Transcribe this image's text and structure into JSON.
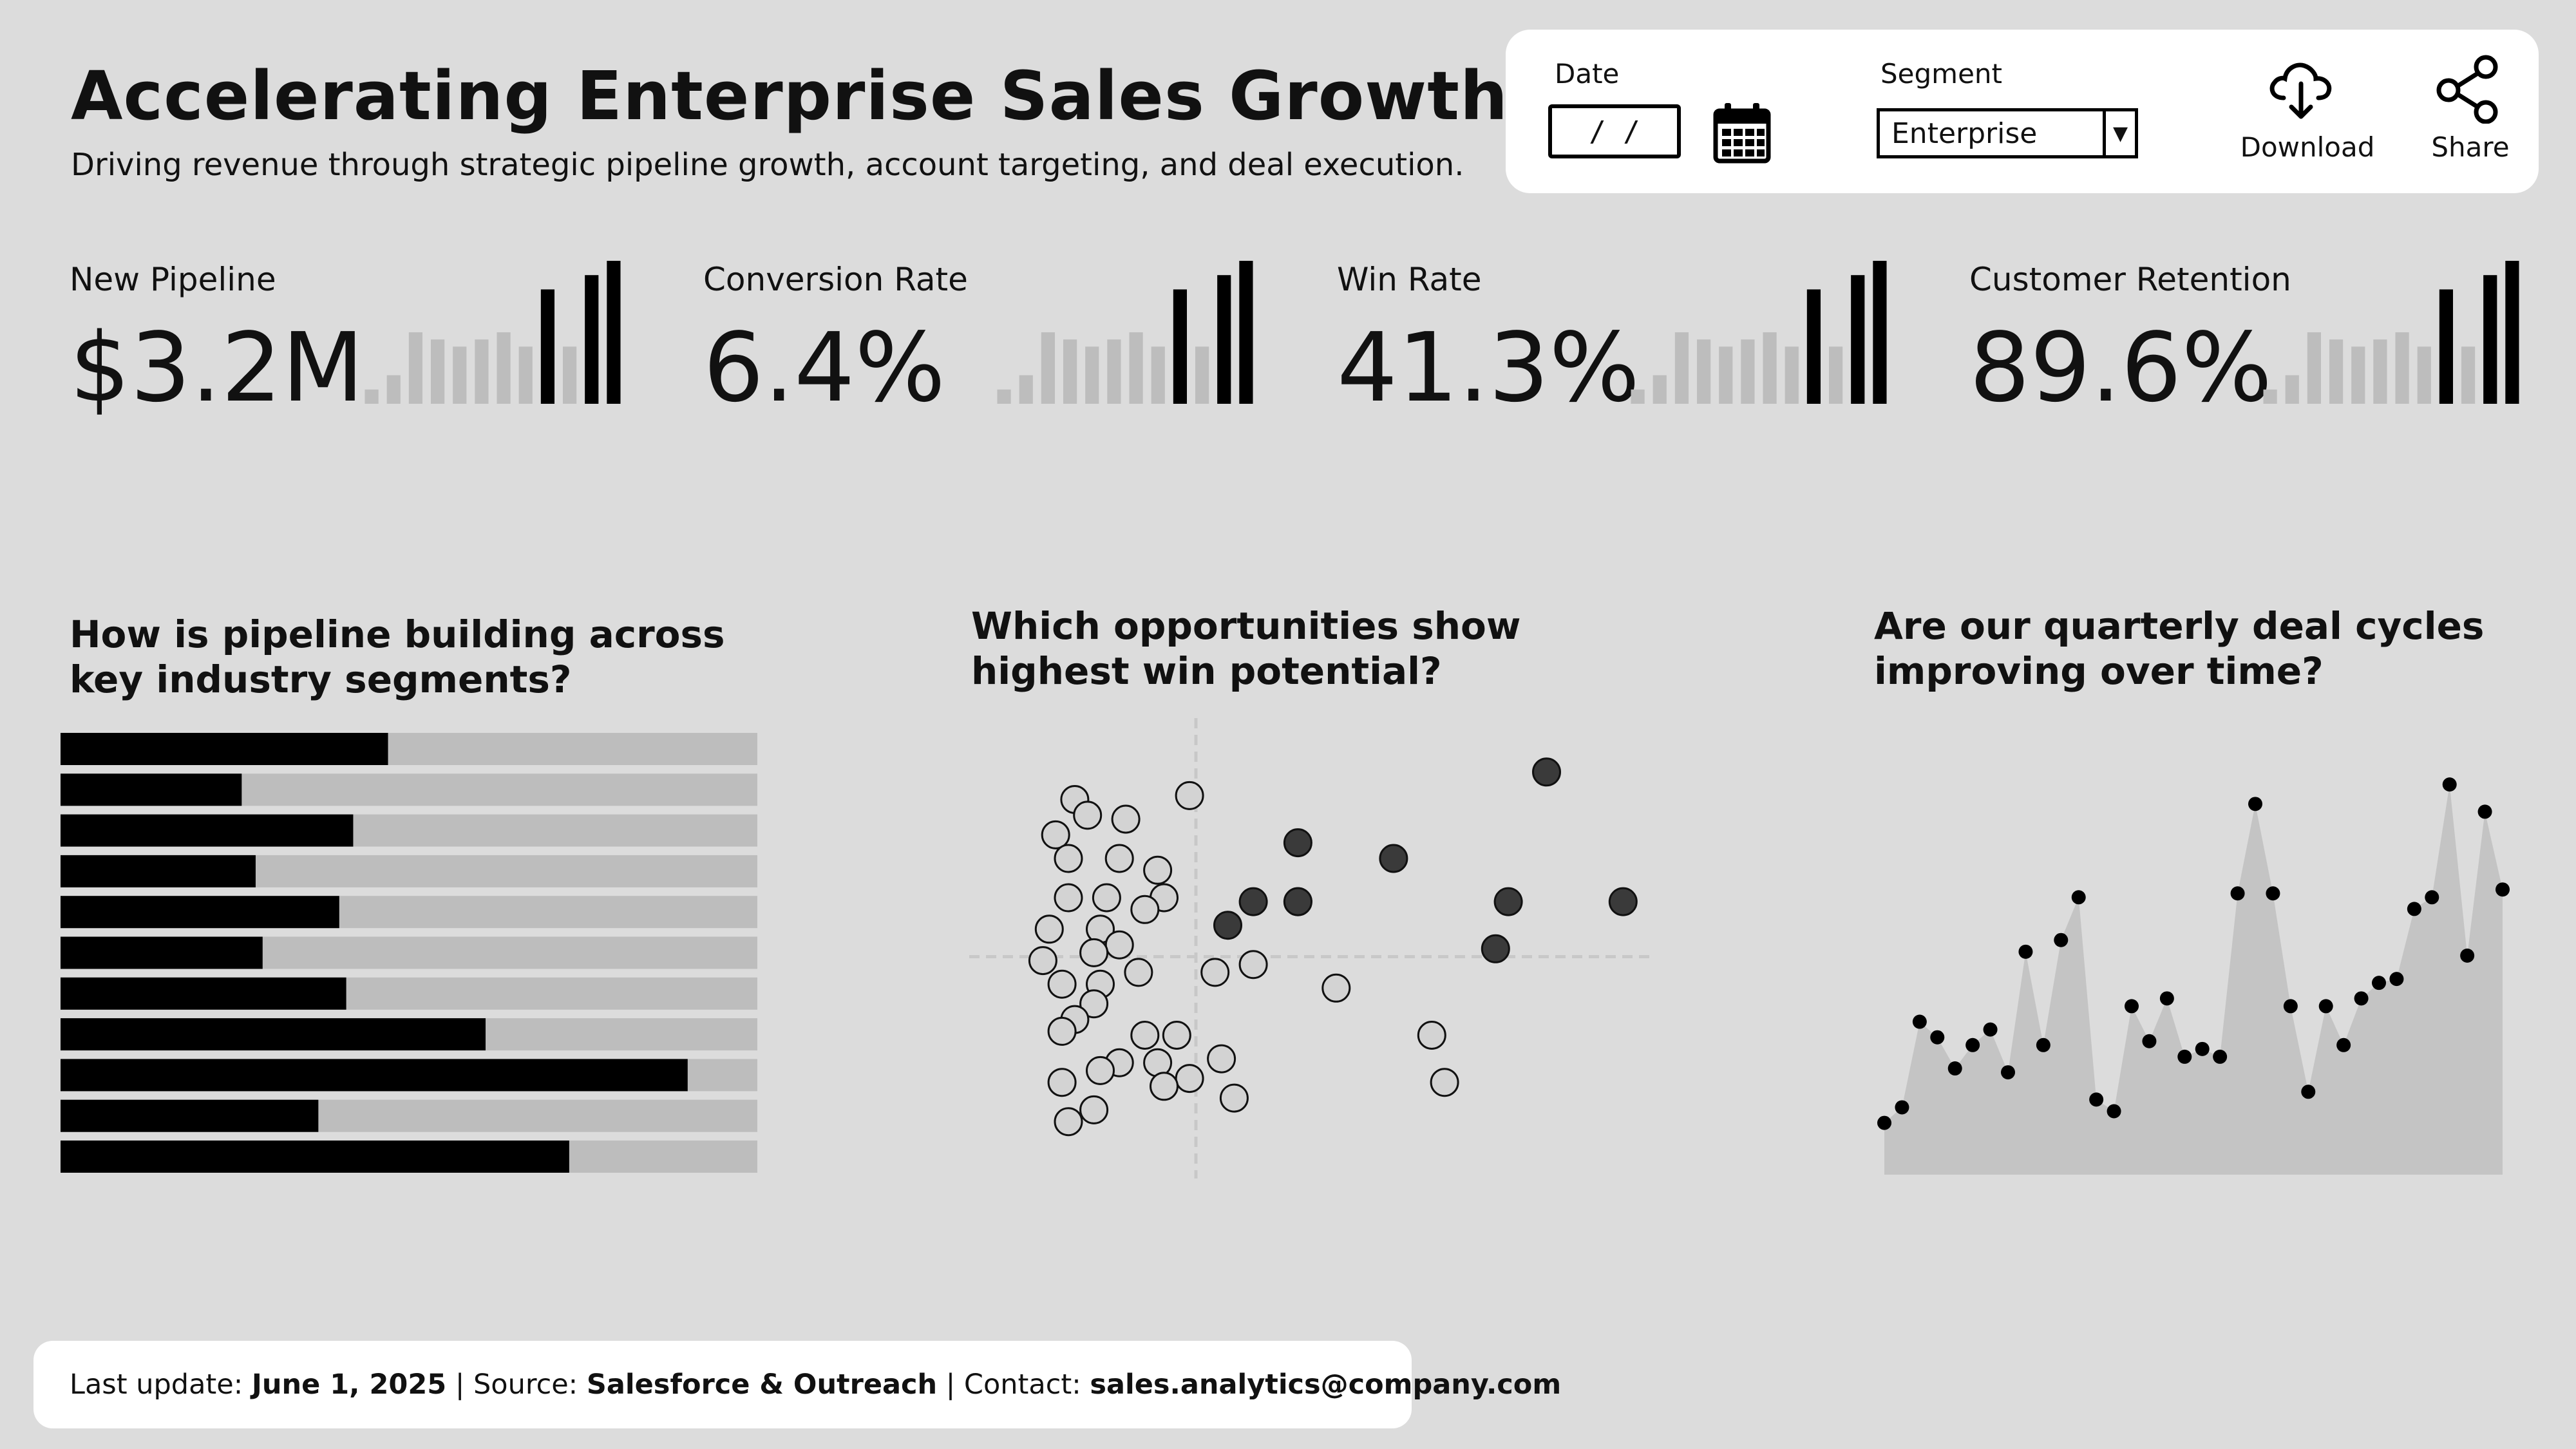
{
  "header": {
    "title": "Accelerating Enterprise Sales Growth",
    "subtitle": "Driving revenue through strategic pipeline growth, account targeting, and deal execution."
  },
  "controls": {
    "date_label": "Date",
    "date_value": "/ /",
    "date_icon": "calendar-icon",
    "segment_label": "Segment",
    "segment_value": "Enterprise",
    "download_label": "Download",
    "download_icon": "cloud-download-icon",
    "share_label": "Share",
    "share_icon": "share-icon"
  },
  "kpis": [
    {
      "label": "New Pipeline",
      "value": "$3.2M",
      "bars": [
        2,
        4,
        10,
        9,
        8,
        9,
        10,
        8,
        16,
        8,
        18,
        20
      ]
    },
    {
      "label": "Conversion Rate",
      "value": "6.4%",
      "bars": [
        2,
        4,
        10,
        9,
        8,
        9,
        10,
        8,
        16,
        8,
        18,
        20
      ]
    },
    {
      "label": "Win Rate",
      "value": "41.3%",
      "bars": [
        2,
        4,
        10,
        9,
        8,
        9,
        10,
        8,
        16,
        8,
        18,
        20
      ]
    },
    {
      "label": "Customer Retention",
      "value": "89.6%",
      "bars": [
        2,
        4,
        10,
        9,
        8,
        9,
        10,
        8,
        16,
        8,
        18,
        20
      ]
    }
  ],
  "kpi_colors": {
    "muted": "#bdbdbd",
    "highlight": "#000000"
  },
  "questions": {
    "q1": "How is pipeline building across key industry segments?",
    "q2": "Which opportunities show highest win potential?",
    "q3": "Are our quarterly deal cycles improving over time?"
  },
  "chart_data": [
    {
      "type": "bar",
      "orientation": "horizontal",
      "title": "How is pipeline building across key industry segments?",
      "xlim": [
        0,
        1
      ],
      "values": [
        0.47,
        0.26,
        0.42,
        0.28,
        0.4,
        0.29,
        0.41,
        0.61,
        0.9,
        0.37,
        0.73
      ],
      "colors": {
        "bar": "#000000",
        "track": "#bdbdbd"
      }
    },
    {
      "type": "scatter",
      "title": "Which opportunities show highest win potential?",
      "xlim": [
        0,
        100
      ],
      "ylim": [
        0,
        100
      ],
      "reference_lines": {
        "x": 30,
        "y": 45
      },
      "points": [
        {
          "x": 29,
          "y": 86
        },
        {
          "x": 11,
          "y": 85
        },
        {
          "x": 13,
          "y": 81
        },
        {
          "x": 19,
          "y": 80
        },
        {
          "x": 8,
          "y": 76
        },
        {
          "x": 10,
          "y": 70
        },
        {
          "x": 18,
          "y": 70
        },
        {
          "x": 24,
          "y": 67
        },
        {
          "x": 10,
          "y": 60
        },
        {
          "x": 16,
          "y": 60
        },
        {
          "x": 25,
          "y": 60
        },
        {
          "x": 22,
          "y": 57
        },
        {
          "x": 7,
          "y": 52
        },
        {
          "x": 15,
          "y": 52
        },
        {
          "x": 18,
          "y": 48
        },
        {
          "x": 14,
          "y": 46
        },
        {
          "x": 6,
          "y": 44
        },
        {
          "x": 21,
          "y": 41
        },
        {
          "x": 9,
          "y": 38
        },
        {
          "x": 15,
          "y": 38
        },
        {
          "x": 14,
          "y": 33
        },
        {
          "x": 11,
          "y": 29
        },
        {
          "x": 9,
          "y": 26
        },
        {
          "x": 22,
          "y": 25
        },
        {
          "x": 27,
          "y": 25
        },
        {
          "x": 18,
          "y": 18
        },
        {
          "x": 24,
          "y": 18
        },
        {
          "x": 34,
          "y": 19
        },
        {
          "x": 15,
          "y": 16
        },
        {
          "x": 29,
          "y": 14
        },
        {
          "x": 9,
          "y": 13
        },
        {
          "x": 25,
          "y": 12
        },
        {
          "x": 36,
          "y": 9
        },
        {
          "x": 14,
          "y": 6
        },
        {
          "x": 10,
          "y": 3
        },
        {
          "x": 33,
          "y": 41
        },
        {
          "x": 39,
          "y": 43
        },
        {
          "x": 52,
          "y": 37
        },
        {
          "x": 67,
          "y": 25
        },
        {
          "x": 69,
          "y": 13
        },
        {
          "x": 85,
          "y": 92,
          "highlight": true
        },
        {
          "x": 46,
          "y": 74,
          "highlight": true
        },
        {
          "x": 61,
          "y": 70,
          "highlight": true
        },
        {
          "x": 39,
          "y": 59,
          "highlight": true
        },
        {
          "x": 46,
          "y": 59,
          "highlight": true
        },
        {
          "x": 46,
          "y": 59,
          "highlight": true
        },
        {
          "x": 35,
          "y": 53,
          "highlight": true
        },
        {
          "x": 79,
          "y": 59,
          "highlight": true
        },
        {
          "x": 97,
          "y": 59,
          "highlight": true
        },
        {
          "x": 77,
          "y": 47,
          "highlight": true
        }
      ],
      "colors": {
        "muted": "#d3d3d3",
        "highlight": "#3a3a3a"
      }
    },
    {
      "type": "area",
      "title": "Are our quarterly deal cycles improving over time?",
      "ylim": [
        0,
        100
      ],
      "values": [
        10,
        14,
        36,
        32,
        24,
        30,
        34,
        23,
        54,
        30,
        57,
        68,
        16,
        13,
        40,
        31,
        42,
        27,
        29,
        27,
        69,
        92,
        69,
        40,
        18,
        40,
        30,
        42,
        46,
        47,
        65,
        68,
        97,
        53,
        90,
        70
      ],
      "colors": {
        "area": "#c4c4c4",
        "point": "#000000"
      }
    }
  ],
  "footer": {
    "update_label": "Last update:",
    "update_value": "June 1, 2025",
    "source_label": "| Source:",
    "source_value": "Salesforce & Outreach",
    "contact_label": "| Contact:",
    "contact_value": "sales.analytics@company.com"
  }
}
